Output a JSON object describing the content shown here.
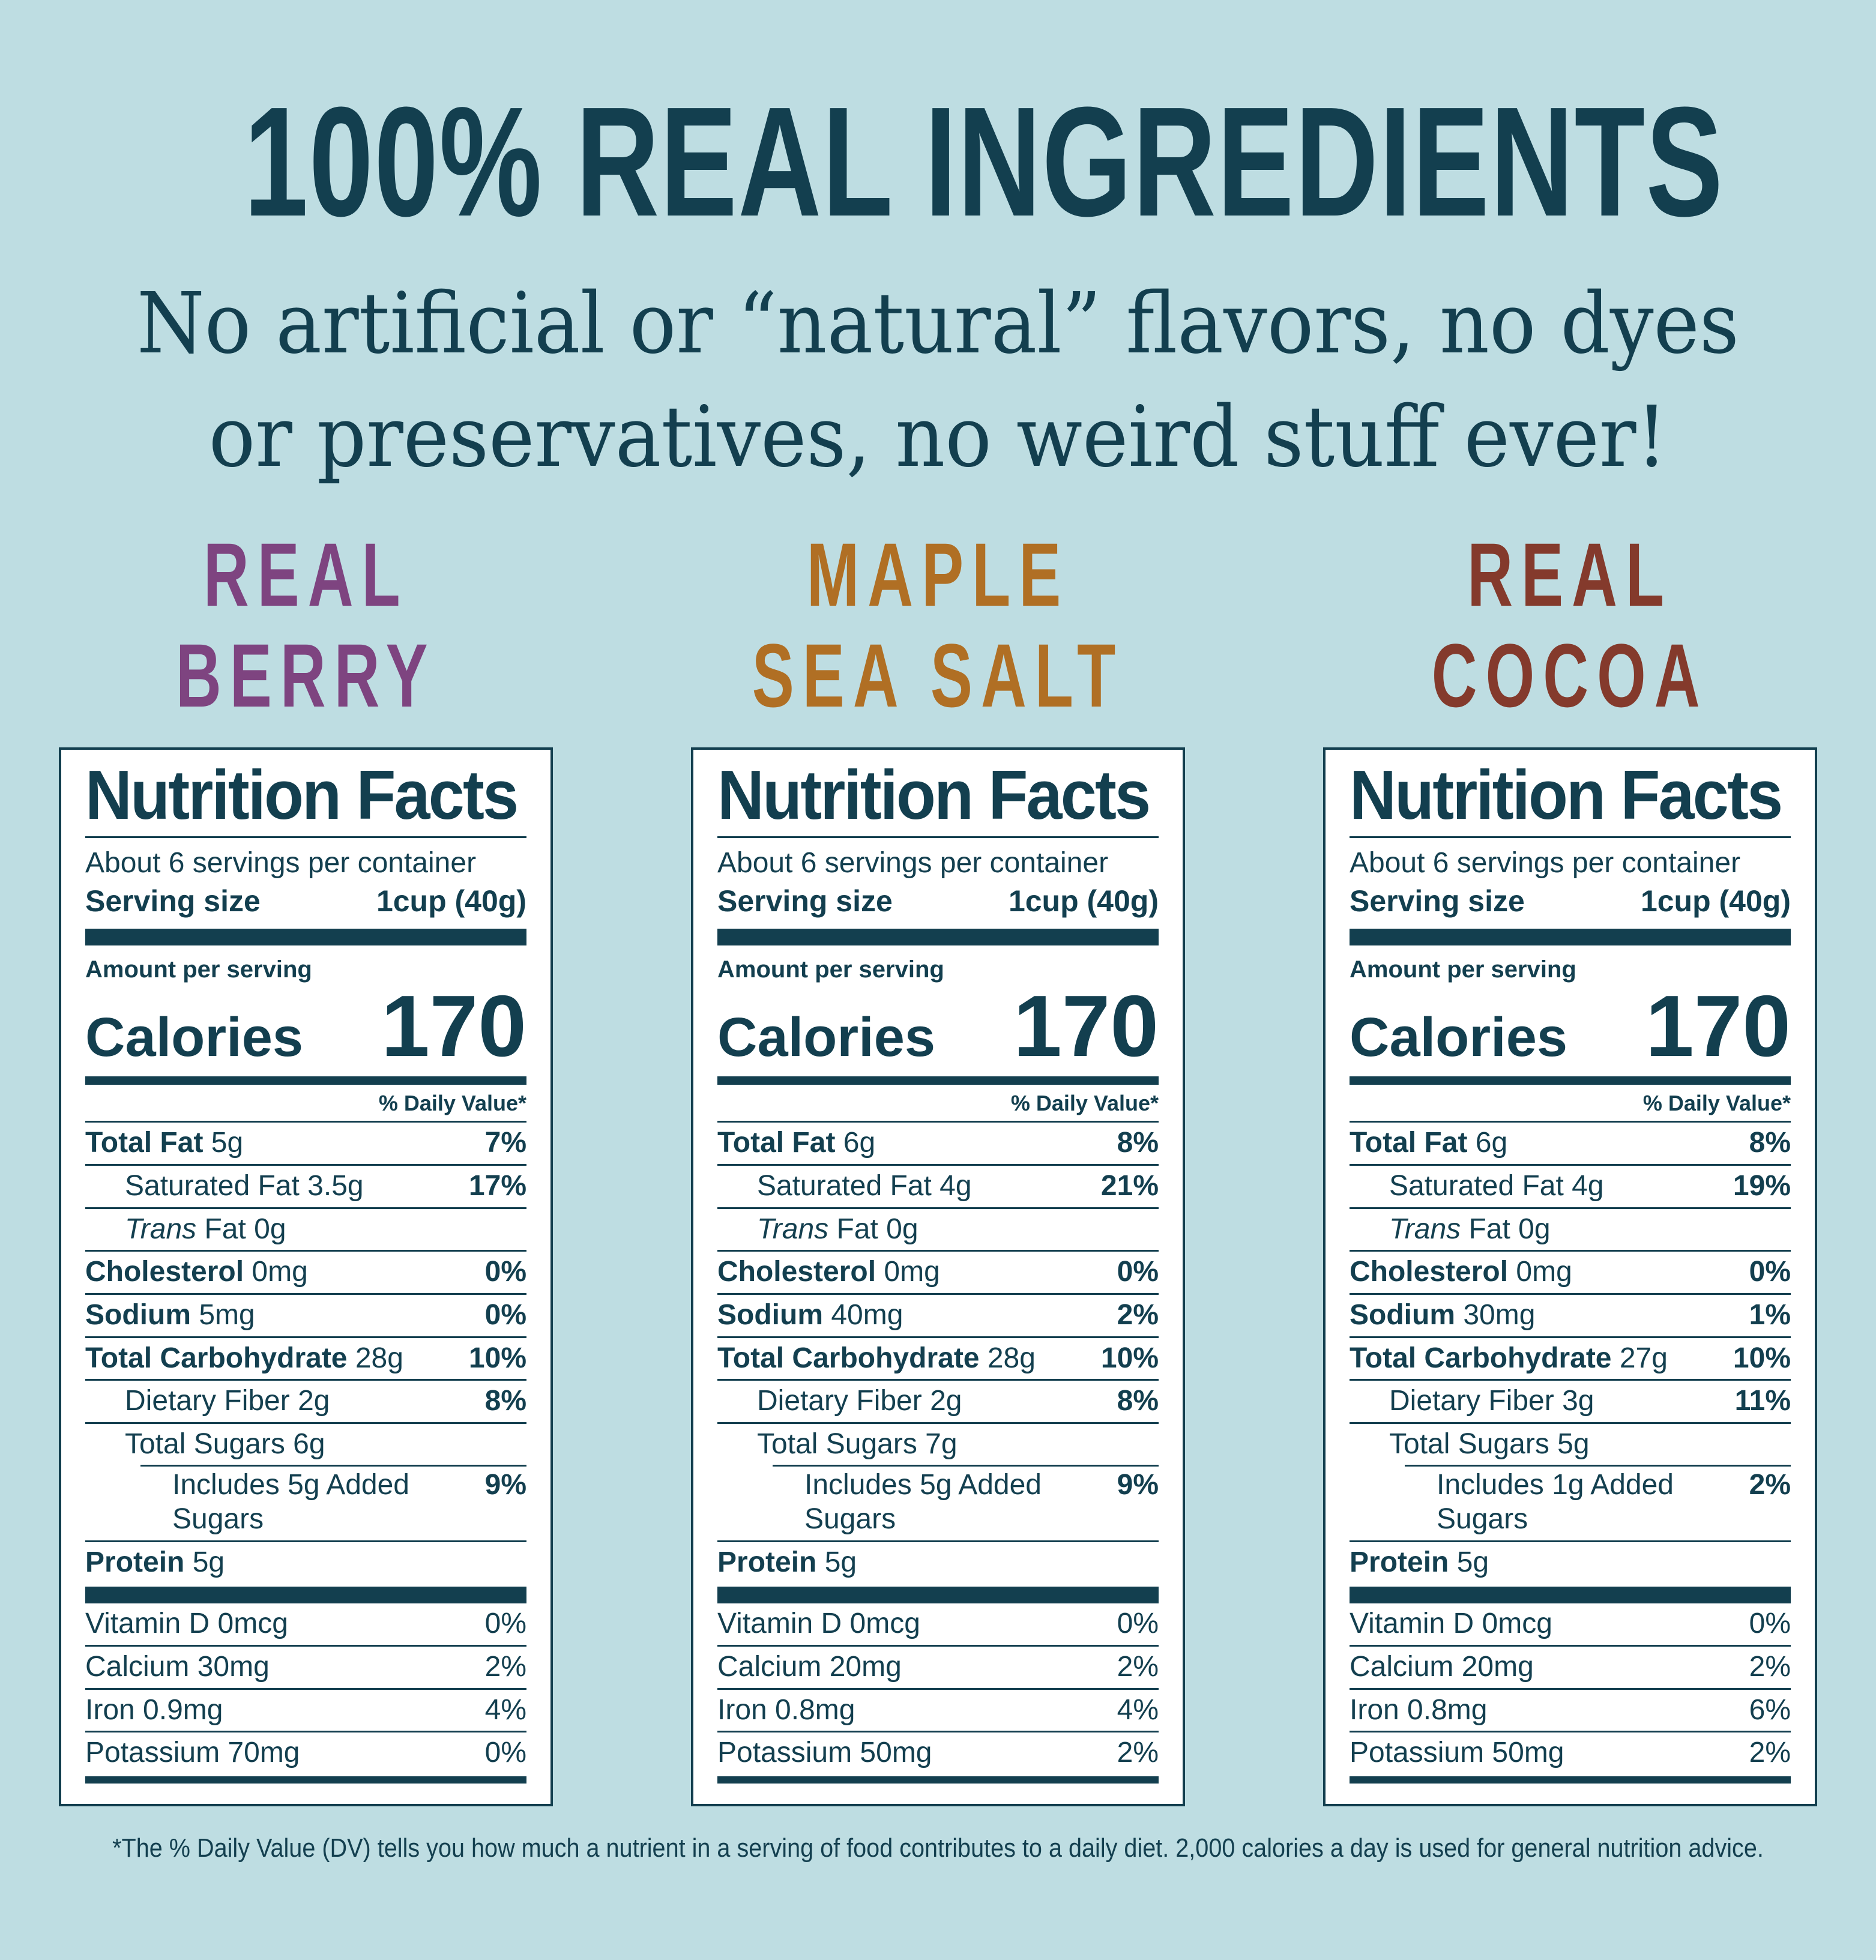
{
  "colors": {
    "background": "#bedde2",
    "ink": "#133f4f",
    "berry": "#7e4480",
    "maple": "#b06f24",
    "cocoa": "#843a2c",
    "label_bg": "#ffffff"
  },
  "header": {
    "title": "100% REAL INGREDIENTS",
    "subtitle_line1": "No artificial or “natural” flavors, no dyes",
    "subtitle_line2": "or preservatives, no weird stuff ever!"
  },
  "flavors": [
    {
      "line1": "REAL",
      "line2": "BERRY"
    },
    {
      "line1": "MAPLE",
      "line2": "SEA SALT"
    },
    {
      "line1": "REAL",
      "line2": "COCOA"
    }
  ],
  "labels": [
    {
      "title": "Nutrition Facts",
      "servings_per_container": "About 6 servings per container",
      "serving_size_label": "Serving size",
      "serving_size_value": "1cup (40g)",
      "amount_per_serving": "Amount per serving",
      "calories_label": "Calories",
      "calories_value": "170",
      "daily_value_header": "% Daily Value*",
      "rows": [
        {
          "bold": "Total Fat",
          "rest": " 5g",
          "dv": "7%",
          "dvb": true
        },
        {
          "rest": "Saturated Fat 3.5g",
          "dv": "17%",
          "dvb": true,
          "ind": 1
        },
        {
          "italic": "Trans",
          "rest": " Fat 0g",
          "ind": 1
        },
        {
          "bold": "Cholesterol",
          "rest": " 0mg",
          "dv": "0%",
          "dvb": true
        },
        {
          "bold": "Sodium",
          "rest": " 5mg",
          "dv": "0%",
          "dvb": true
        },
        {
          "bold": "Total Carbohydrate",
          "rest": " 28g",
          "dv": "10%",
          "dvb": true
        },
        {
          "rest": "Dietary Fiber 2g",
          "dv": "8%",
          "dvb": true,
          "ind": 1
        },
        {
          "rest": "Total Sugars 6g",
          "ind": 1
        },
        {
          "rest": "Includes 5g Added Sugars",
          "dv": "9%",
          "dvb": true,
          "ind": 2,
          "partial_rule": true
        },
        {
          "bold": "Protein",
          "rest": " 5g"
        }
      ],
      "vitamins": [
        {
          "rest": "Vitamin D 0mcg",
          "dv": "0%"
        },
        {
          "rest": "Calcium 30mg",
          "dv": "2%"
        },
        {
          "rest": "Iron 0.9mg",
          "dv": "4%"
        },
        {
          "rest": "Potassium 70mg",
          "dv": "0%"
        }
      ]
    },
    {
      "title": "Nutrition Facts",
      "servings_per_container": "About 6 servings per container",
      "serving_size_label": "Serving size",
      "serving_size_value": "1cup (40g)",
      "amount_per_serving": "Amount per serving",
      "calories_label": "Calories",
      "calories_value": "170",
      "daily_value_header": "% Daily Value*",
      "rows": [
        {
          "bold": "Total Fat",
          "rest": " 6g",
          "dv": "8%",
          "dvb": true
        },
        {
          "rest": "Saturated Fat 4g",
          "dv": "21%",
          "dvb": true,
          "ind": 1
        },
        {
          "italic": "Trans",
          "rest": " Fat 0g",
          "ind": 1
        },
        {
          "bold": "Cholesterol",
          "rest": " 0mg",
          "dv": "0%",
          "dvb": true
        },
        {
          "bold": "Sodium",
          "rest": " 40mg",
          "dv": "2%",
          "dvb": true
        },
        {
          "bold": "Total Carbohydrate",
          "rest": " 28g",
          "dv": "10%",
          "dvb": true
        },
        {
          "rest": "Dietary Fiber 2g",
          "dv": "8%",
          "dvb": true,
          "ind": 1
        },
        {
          "rest": "Total Sugars 7g",
          "ind": 1
        },
        {
          "rest": "Includes 5g Added Sugars",
          "dv": "9%",
          "dvb": true,
          "ind": 2,
          "partial_rule": true
        },
        {
          "bold": "Protein",
          "rest": " 5g"
        }
      ],
      "vitamins": [
        {
          "rest": "Vitamin D 0mcg",
          "dv": "0%"
        },
        {
          "rest": "Calcium 20mg",
          "dv": "2%"
        },
        {
          "rest": "Iron 0.8mg",
          "dv": "4%"
        },
        {
          "rest": "Potassium 50mg",
          "dv": "2%"
        }
      ]
    },
    {
      "title": "Nutrition Facts",
      "servings_per_container": "About 6 servings per container",
      "serving_size_label": "Serving size",
      "serving_size_value": "1cup (40g)",
      "amount_per_serving": "Amount per serving",
      "calories_label": "Calories",
      "calories_value": "170",
      "daily_value_header": "% Daily Value*",
      "rows": [
        {
          "bold": "Total Fat",
          "rest": " 6g",
          "dv": "8%",
          "dvb": true
        },
        {
          "rest": "Saturated Fat 4g",
          "dv": "19%",
          "dvb": true,
          "ind": 1
        },
        {
          "italic": "Trans",
          "rest": " Fat 0g",
          "ind": 1
        },
        {
          "bold": "Cholesterol",
          "rest": " 0mg",
          "dv": "0%",
          "dvb": true
        },
        {
          "bold": "Sodium",
          "rest": " 30mg",
          "dv": "1%",
          "dvb": true
        },
        {
          "bold": "Total Carbohydrate",
          "rest": " 27g",
          "dv": "10%",
          "dvb": true
        },
        {
          "rest": "Dietary Fiber 3g",
          "dv": "11%",
          "dvb": true,
          "ind": 1
        },
        {
          "rest": "Total Sugars 5g",
          "ind": 1
        },
        {
          "rest": "Includes 1g Added Sugars",
          "dv": "2%",
          "dvb": true,
          "ind": 2,
          "partial_rule": true
        },
        {
          "bold": "Protein",
          "rest": " 5g"
        }
      ],
      "vitamins": [
        {
          "rest": "Vitamin D 0mcg",
          "dv": "0%"
        },
        {
          "rest": "Calcium 20mg",
          "dv": "2%"
        },
        {
          "rest": "Iron 0.8mg",
          "dv": "6%"
        },
        {
          "rest": "Potassium 50mg",
          "dv": "2%"
        }
      ]
    }
  ],
  "footnote": "*The % Daily Value (DV) tells you how much a nutrient in a serving of food contributes to a daily diet. 2,000 calories a day is used for general nutrition advice."
}
